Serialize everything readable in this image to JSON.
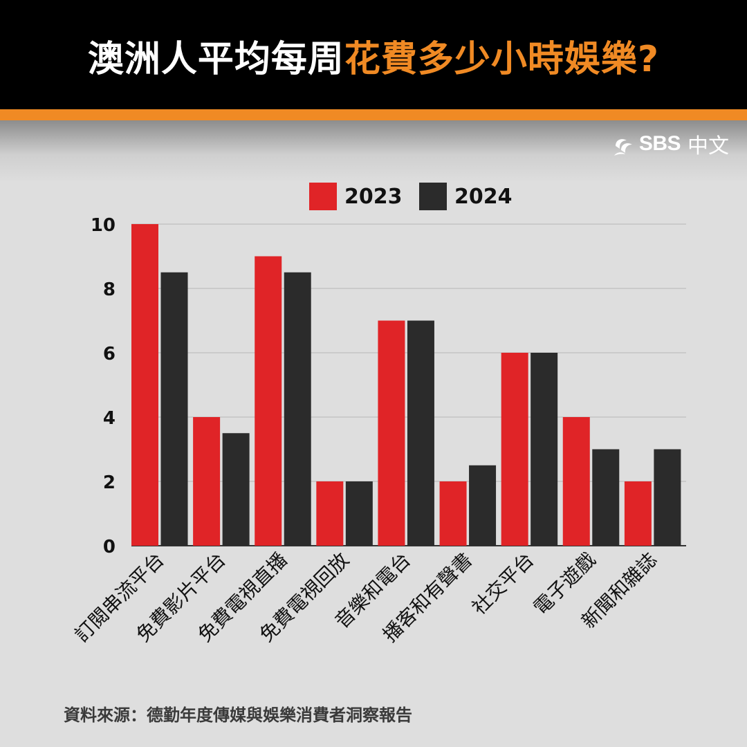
{
  "header": {
    "title_white": "澳洲人平均每周",
    "title_orange": "花費多少小時娛樂?"
  },
  "logo": {
    "text": "SBS",
    "cn": "中文"
  },
  "colors": {
    "accent": "#f08a24",
    "series_2023": "#e02427",
    "series_2024": "#2b2b2b",
    "grid": "#b5b5b5",
    "background": "#dedede"
  },
  "source": "資料來源：德勤年度傳媒與娛樂消費者洞察報告",
  "chart_data": {
    "type": "bar",
    "title": "澳洲人平均每周花費多少小時娛樂?",
    "categories": [
      "訂閱串流平台",
      "免費影片平台",
      "免費電視直播",
      "免費電視回放",
      "音樂和電台",
      "播客和有聲書",
      "社交平台",
      "電子遊戲",
      "新聞和雜誌"
    ],
    "series": [
      {
        "name": "2023",
        "values": [
          10,
          4,
          9,
          2,
          7,
          2,
          6,
          4,
          2
        ]
      },
      {
        "name": "2024",
        "values": [
          8.5,
          3.5,
          8.5,
          2,
          7,
          2.5,
          6,
          3,
          3
        ]
      }
    ],
    "yticks": [
      "0",
      "2",
      "4",
      "6",
      "8",
      "10"
    ],
    "ylim": [
      0,
      10
    ],
    "xlabel": "",
    "ylabel": "",
    "legend": "top-center",
    "grid": true
  }
}
